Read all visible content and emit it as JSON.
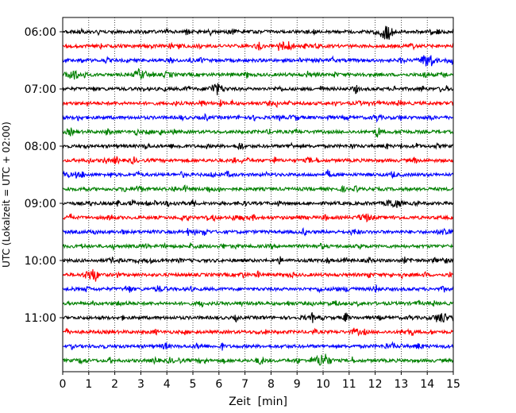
{
  "chart_data": {
    "type": "line",
    "subtype": "seismogram-helicorder",
    "xlabel": "Zeit  [min]",
    "ylabel": "UTC (Lokalzeit = UTC + 02:00)",
    "xlim": [
      0,
      15
    ],
    "x_ticks": [
      0,
      1,
      2,
      3,
      4,
      5,
      6,
      7,
      8,
      9,
      10,
      11,
      12,
      13,
      14,
      15
    ],
    "y_tick_labels": [
      "06:00",
      "07:00",
      "08:00",
      "09:00",
      "10:00",
      "11:00"
    ],
    "trace_interval_min": 15,
    "start_time": "06:00",
    "trace_count": 24,
    "trace_colors": [
      "#000000",
      "#ff0000",
      "#0000ff",
      "#008000"
    ],
    "grid": "vertical-dotted",
    "events": [
      {
        "trace": 0,
        "minute": 12.4,
        "amplitude": 2.4
      },
      {
        "trace": 1,
        "minute": 8.6,
        "amplitude": 1.6
      },
      {
        "trace": 2,
        "minute": 14.0,
        "amplitude": 2.2
      },
      {
        "trace": 3,
        "minute": 0.4,
        "amplitude": 1.6
      },
      {
        "trace": 3,
        "minute": 3.0,
        "amplitude": 1.4
      },
      {
        "trace": 4,
        "minute": 5.9,
        "amplitude": 2.0
      },
      {
        "trace": 12,
        "minute": 12.7,
        "amplitude": 1.6
      },
      {
        "trace": 13,
        "minute": 11.6,
        "amplitude": 1.2
      },
      {
        "trace": 17,
        "minute": 1.1,
        "amplitude": 1.2
      },
      {
        "trace": 20,
        "minute": 14.5,
        "amplitude": 1.6
      },
      {
        "trace": 23,
        "minute": 10.0,
        "amplitude": 2.6
      }
    ]
  }
}
